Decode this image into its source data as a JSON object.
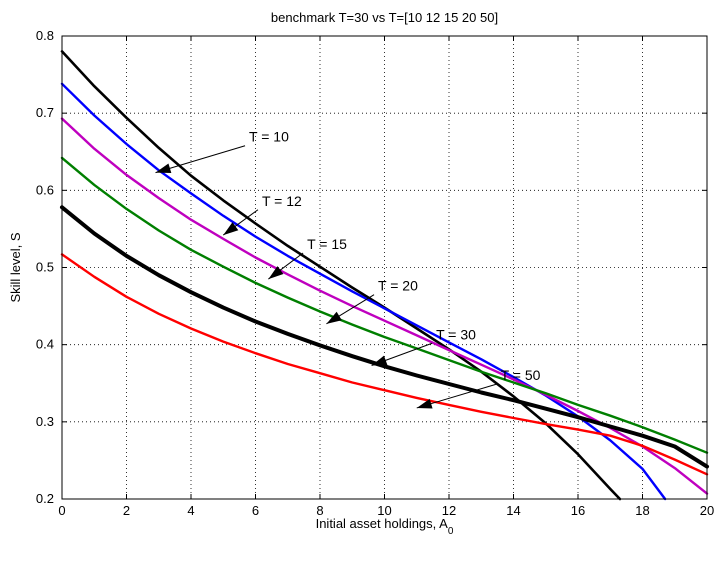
{
  "chart_data": {
    "type": "line",
    "title": "benchmark T=30 vs T=[10 12 15 20 50]",
    "xlabel": "Initial asset holdings, A",
    "xlabel_subscript": "0",
    "ylabel": "Skill level, S",
    "xlim": [
      0,
      20
    ],
    "ylim": [
      0.2,
      0.8
    ],
    "xticks": [
      "0",
      "2",
      "4",
      "6",
      "8",
      "10",
      "12",
      "14",
      "16",
      "18",
      "20"
    ],
    "yticks": [
      "0.2",
      "0.3",
      "0.4",
      "0.5",
      "0.6",
      "0.7",
      "0.8"
    ],
    "grid": true,
    "series": [
      {
        "name": "T = 10",
        "color": "#000000",
        "width": 2.6,
        "x": [
          0,
          1,
          2,
          3,
          4,
          5,
          6,
          7,
          8,
          9,
          10,
          11,
          12,
          13,
          14,
          15,
          16,
          17,
          17.3
        ],
        "values": [
          0.78,
          0.735,
          0.694,
          0.655,
          0.619,
          0.587,
          0.557,
          0.528,
          0.501,
          0.474,
          0.448,
          0.421,
          0.394,
          0.365,
          0.333,
          0.298,
          0.258,
          0.213,
          0.2
        ]
      },
      {
        "name": "T = 12",
        "color": "#0000ff",
        "width": 2.4,
        "x": [
          0,
          1,
          2,
          3,
          4,
          5,
          6,
          7,
          8,
          9,
          10,
          11,
          12,
          13,
          14,
          15,
          16,
          17,
          18,
          18.7
        ],
        "values": [
          0.738,
          0.697,
          0.66,
          0.626,
          0.596,
          0.567,
          0.54,
          0.515,
          0.492,
          0.469,
          0.447,
          0.425,
          0.403,
          0.381,
          0.358,
          0.334,
          0.307,
          0.276,
          0.239,
          0.2
        ]
      },
      {
        "name": "T = 15",
        "color": "#bf00bf",
        "width": 2.4,
        "x": [
          0,
          1,
          2,
          3,
          4,
          5,
          6,
          7,
          8,
          9,
          10,
          11,
          12,
          13,
          14,
          15,
          16,
          17,
          18,
          19,
          20
        ],
        "values": [
          0.693,
          0.654,
          0.62,
          0.59,
          0.562,
          0.537,
          0.513,
          0.491,
          0.47,
          0.45,
          0.431,
          0.412,
          0.393,
          0.374,
          0.355,
          0.335,
          0.314,
          0.292,
          0.268,
          0.24,
          0.207
        ]
      },
      {
        "name": "T = 20",
        "color": "#007f00",
        "width": 2.4,
        "x": [
          0,
          1,
          2,
          3,
          4,
          5,
          6,
          7,
          8,
          9,
          10,
          11,
          12,
          13,
          14,
          15,
          16,
          17,
          18,
          19,
          20
        ],
        "values": [
          0.642,
          0.607,
          0.576,
          0.548,
          0.523,
          0.501,
          0.48,
          0.461,
          0.443,
          0.426,
          0.41,
          0.395,
          0.38,
          0.365,
          0.351,
          0.337,
          0.322,
          0.308,
          0.293,
          0.277,
          0.26
        ]
      },
      {
        "name": "T = 30",
        "color": "#000000",
        "width": 4,
        "x": [
          0,
          1,
          2,
          3,
          4,
          5,
          6,
          7,
          8,
          9,
          10,
          11,
          12,
          13,
          14,
          15,
          16,
          17,
          18,
          19,
          20
        ],
        "values": [
          0.578,
          0.544,
          0.515,
          0.49,
          0.468,
          0.448,
          0.43,
          0.414,
          0.399,
          0.385,
          0.372,
          0.36,
          0.349,
          0.338,
          0.328,
          0.317,
          0.306,
          0.294,
          0.282,
          0.268,
          0.242
        ]
      },
      {
        "name": "T = 50",
        "color": "#ff0000",
        "width": 2.4,
        "x": [
          0,
          1,
          2,
          3,
          4,
          5,
          6,
          7,
          8,
          9,
          10,
          11,
          12,
          13,
          14,
          15,
          16,
          17,
          18,
          19,
          20
        ],
        "values": [
          0.517,
          0.488,
          0.462,
          0.44,
          0.421,
          0.404,
          0.389,
          0.375,
          0.363,
          0.351,
          0.341,
          0.331,
          0.322,
          0.313,
          0.305,
          0.297,
          0.29,
          0.282,
          0.269,
          0.251,
          0.232
        ]
      }
    ],
    "annotations": [
      {
        "text": "T = 10",
        "x": 5.8,
        "y": 0.663,
        "tx": 2.9,
        "ty": 0.623
      },
      {
        "text": "T = 12",
        "x": 6.2,
        "y": 0.58,
        "tx": 5.0,
        "ty": 0.542
      },
      {
        "text": "T = 15",
        "x": 7.6,
        "y": 0.524,
        "tx": 6.4,
        "ty": 0.485
      },
      {
        "text": "T = 20",
        "x": 9.8,
        "y": 0.47,
        "tx": 8.2,
        "ty": 0.427
      },
      {
        "text": "T = 30",
        "x": 11.6,
        "y": 0.407,
        "tx": 9.6,
        "ty": 0.373
      },
      {
        "text": "T = 50",
        "x": 13.6,
        "y": 0.354,
        "tx": 11.0,
        "ty": 0.318
      }
    ]
  }
}
